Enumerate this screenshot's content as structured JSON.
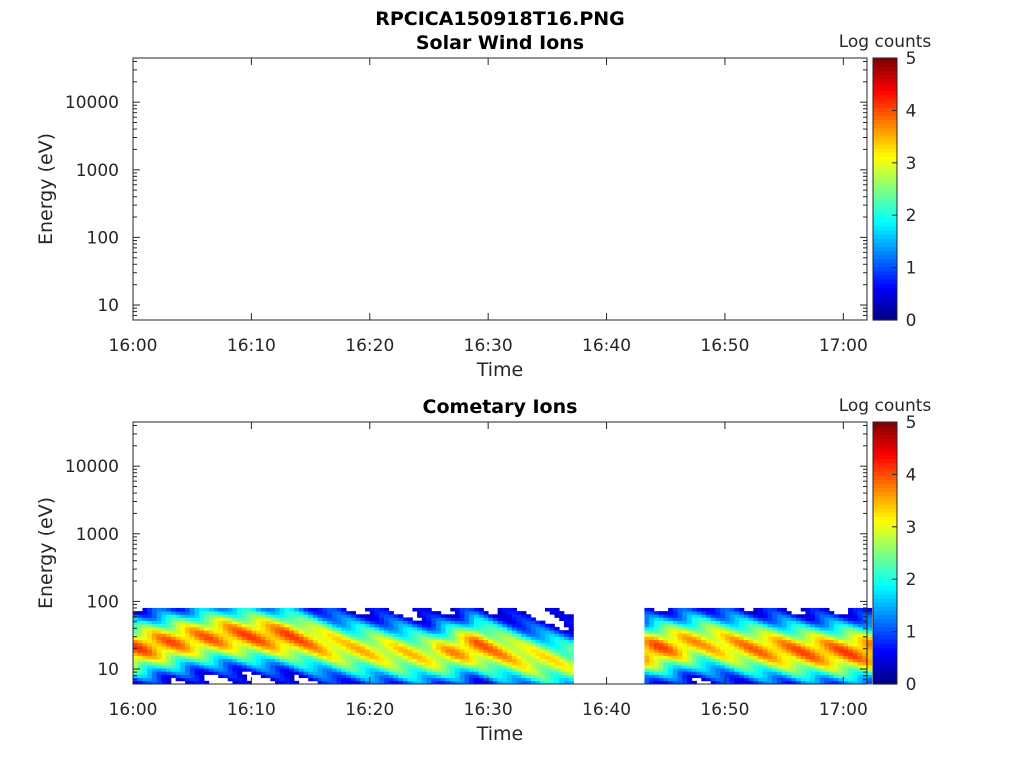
{
  "figure": {
    "title": "RPCICA150918T16.PNG"
  },
  "chart_data": [
    {
      "type": "heatmap",
      "title": "Solar Wind Ions",
      "xlabel": "Time",
      "ylabel": "Energy (eV)",
      "x_ticks": [
        "16:00",
        "16:10",
        "16:20",
        "16:30",
        "16:40",
        "16:50",
        "17:00"
      ],
      "x_range": [
        "16:00",
        "17:02"
      ],
      "y_scale": "log",
      "y_ticks": [
        10,
        100,
        1000,
        10000
      ],
      "y_range": [
        6,
        45000
      ],
      "colorbar": {
        "label": "Log counts",
        "ticks": [
          0,
          1,
          2,
          3,
          4,
          5
        ],
        "range": [
          0,
          5
        ],
        "colormap": "jet"
      },
      "data": []
    },
    {
      "type": "heatmap",
      "title": "Cometary Ions",
      "xlabel": "Time",
      "ylabel": "Energy (eV)",
      "x_ticks": [
        "16:00",
        "16:10",
        "16:20",
        "16:30",
        "16:40",
        "16:50",
        "17:00"
      ],
      "x_range": [
        "16:00",
        "17:02"
      ],
      "y_scale": "log",
      "y_ticks": [
        10,
        100,
        1000,
        10000
      ],
      "y_range": [
        6,
        45000
      ],
      "colorbar": {
        "label": "Log counts",
        "ticks": [
          0,
          1,
          2,
          3,
          4,
          5
        ],
        "range": [
          0,
          5
        ],
        "colormap": "jet"
      },
      "energy_range_eV": [
        6,
        80
      ],
      "data_gaps": [
        [
          "16:37",
          "16:43"
        ]
      ],
      "peak_energy_profile": [
        {
          "time": "16:00",
          "peak_energy_eV": 20,
          "peak_log_counts": 3.8
        },
        {
          "time": "16:05",
          "peak_energy_eV": 28,
          "peak_log_counts": 3.6
        },
        {
          "time": "16:08",
          "peak_energy_eV": 32,
          "peak_log_counts": 3.7
        },
        {
          "time": "16:13",
          "peak_energy_eV": 30,
          "peak_log_counts": 3.8
        },
        {
          "time": "16:18",
          "peak_energy_eV": 20,
          "peak_log_counts": 3.2
        },
        {
          "time": "16:25",
          "peak_energy_eV": 16,
          "peak_log_counts": 3.1
        },
        {
          "time": "16:29",
          "peak_energy_eV": 22,
          "peak_log_counts": 3.7
        },
        {
          "time": "16:33",
          "peak_energy_eV": 15,
          "peak_log_counts": 3.2
        },
        {
          "time": "16:37",
          "peak_energy_eV": 12,
          "peak_log_counts": 2.8
        },
        {
          "time": "16:44",
          "peak_energy_eV": 20,
          "peak_log_counts": 3.8
        },
        {
          "time": "16:48",
          "peak_energy_eV": 25,
          "peak_log_counts": 3.3
        },
        {
          "time": "16:53",
          "peak_energy_eV": 20,
          "peak_log_counts": 3.6
        },
        {
          "time": "16:57",
          "peak_energy_eV": 18,
          "peak_log_counts": 3.7
        },
        {
          "time": "17:02",
          "peak_energy_eV": 18,
          "peak_log_counts": 3.8
        }
      ]
    }
  ]
}
